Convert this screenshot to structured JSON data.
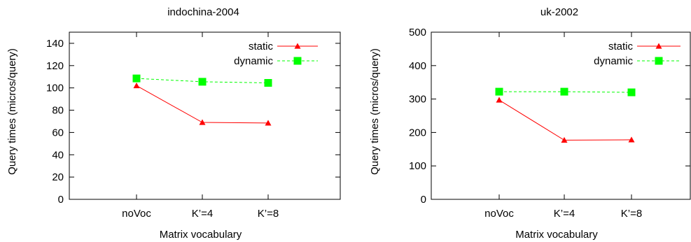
{
  "chart_data": [
    {
      "type": "line",
      "title": "indochina-2004",
      "xlabel": "Matrix vocabulary",
      "ylabel": "Query times (micros/query)",
      "categories": [
        "noVoc",
        "K’=4",
        "K’=8"
      ],
      "ylim": [
        0,
        150
      ],
      "yticks": [
        0,
        20,
        40,
        60,
        80,
        100,
        120,
        140
      ],
      "legend_position": "top-right",
      "grid": false,
      "series": [
        {
          "name": "static",
          "values": [
            102,
            69,
            68.5
          ],
          "color": "#ff0000",
          "marker": "triangle",
          "dash": "solid"
        },
        {
          "name": "dynamic",
          "values": [
            108.5,
            105.5,
            104.5
          ],
          "color": "#00ff00",
          "marker": "square",
          "dash": "dashed"
        }
      ]
    },
    {
      "type": "line",
      "title": "uk-2002",
      "xlabel": "Matrix vocabulary",
      "ylabel": "Query times (micros/query)",
      "categories": [
        "noVoc",
        "K’=4",
        "K’=8"
      ],
      "ylim": [
        0,
        500
      ],
      "yticks": [
        0,
        100,
        200,
        300,
        400,
        500
      ],
      "legend_position": "top-right",
      "grid": false,
      "series": [
        {
          "name": "static",
          "values": [
            297,
            177,
            178
          ],
          "color": "#ff0000",
          "marker": "triangle",
          "dash": "solid"
        },
        {
          "name": "dynamic",
          "values": [
            322,
            322,
            320
          ],
          "color": "#00ff00",
          "marker": "square",
          "dash": "dashed"
        }
      ]
    }
  ]
}
